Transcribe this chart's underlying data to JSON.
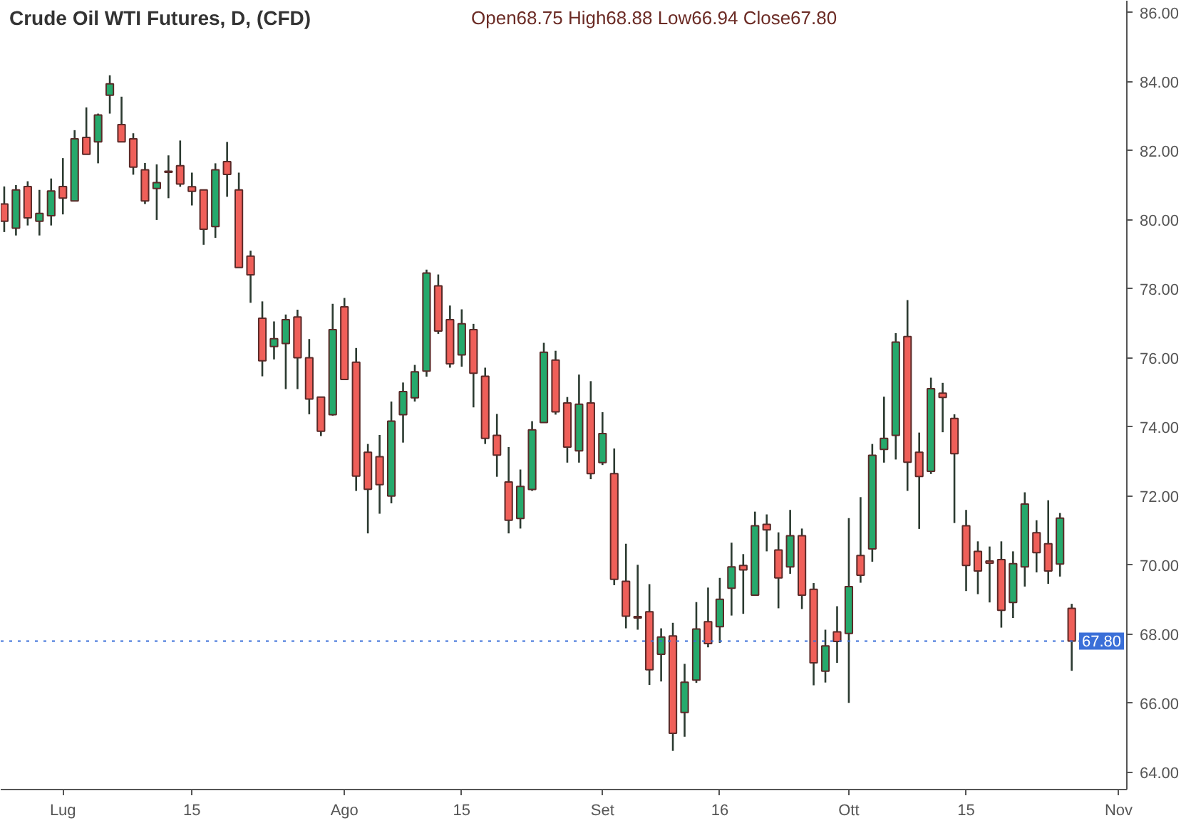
{
  "chart_data": {
    "type": "candlestick",
    "title": "Crude Oil WTI Futures, D, (CFD)",
    "subtitle": "Open68.75  High68.88  Low66.94  Close67.80",
    "categories": [
      null,
      null,
      null,
      null,
      null,
      "Lug",
      null,
      null,
      null,
      null,
      null,
      null,
      null,
      null,
      null,
      null,
      "15",
      null,
      null,
      null,
      null,
      null,
      null,
      null,
      null,
      null,
      null,
      null,
      null,
      "Ago",
      null,
      null,
      null,
      null,
      null,
      null,
      null,
      null,
      null,
      "15",
      null,
      null,
      null,
      null,
      null,
      null,
      null,
      null,
      null,
      null,
      null,
      "Set",
      null,
      null,
      null,
      null,
      null,
      null,
      null,
      null,
      null,
      "16",
      null,
      null,
      null,
      null,
      null,
      null,
      null,
      null,
      null,
      null,
      "Ott",
      null,
      null,
      null,
      null,
      null,
      null,
      null,
      null,
      null,
      "15",
      null,
      null,
      null,
      null,
      null,
      null,
      null,
      null,
      null,
      null,
      null,
      null,
      "Nov"
    ],
    "ohlc": [
      [
        80.46,
        80.97,
        79.65,
        79.96
      ],
      [
        79.76,
        81.01,
        79.55,
        80.87
      ],
      [
        80.97,
        81.12,
        79.84,
        80.06
      ],
      [
        79.96,
        80.87,
        79.55,
        80.19
      ],
      [
        80.12,
        81.2,
        79.84,
        80.84
      ],
      [
        80.97,
        81.79,
        80.16,
        80.63
      ],
      [
        80.55,
        82.6,
        80.55,
        82.35
      ],
      [
        82.39,
        83.26,
        81.9,
        81.9
      ],
      [
        82.26,
        83.08,
        81.64,
        83.04
      ],
      [
        83.61,
        84.19,
        83.08,
        83.94
      ],
      [
        82.76,
        83.57,
        82.26,
        82.26
      ],
      [
        82.35,
        82.51,
        81.31,
        81.53
      ],
      [
        81.45,
        81.65,
        80.46,
        80.55
      ],
      [
        80.91,
        81.61,
        80.0,
        81.08
      ],
      [
        81.38,
        81.87,
        80.63,
        81.41
      ],
      [
        81.57,
        82.3,
        80.96,
        81.04
      ],
      [
        80.96,
        81.37,
        80.42,
        80.83
      ],
      [
        80.87,
        80.87,
        79.28,
        79.73
      ],
      [
        79.81,
        81.64,
        79.48,
        81.45
      ],
      [
        81.69,
        82.26,
        80.67,
        81.32
      ],
      [
        80.87,
        81.37,
        78.62,
        78.62
      ],
      [
        78.95,
        79.11,
        77.6,
        78.41
      ],
      [
        77.15,
        77.64,
        75.47,
        75.92
      ],
      [
        76.33,
        77.06,
        75.96,
        76.56
      ],
      [
        76.42,
        77.26,
        75.1,
        77.11
      ],
      [
        77.19,
        77.4,
        75.1,
        76.01
      ],
      [
        76.01,
        76.55,
        74.37,
        74.81
      ],
      [
        74.87,
        74.87,
        73.74,
        73.88
      ],
      [
        74.36,
        77.57,
        74.33,
        76.82
      ],
      [
        77.48,
        77.74,
        75.38,
        75.38
      ],
      [
        75.88,
        76.29,
        72.15,
        72.58
      ],
      [
        73.27,
        73.51,
        70.92,
        72.2
      ],
      [
        73.14,
        73.77,
        71.49,
        72.33
      ],
      [
        72.0,
        74.74,
        71.79,
        74.17
      ],
      [
        74.36,
        75.29,
        73.55,
        75.03
      ],
      [
        74.85,
        75.8,
        74.74,
        75.6
      ],
      [
        75.62,
        78.56,
        75.46,
        78.46
      ],
      [
        78.09,
        78.42,
        76.7,
        76.78
      ],
      [
        77.11,
        77.52,
        75.72,
        75.83
      ],
      [
        76.09,
        77.41,
        75.75,
        76.99
      ],
      [
        76.82,
        76.99,
        74.57,
        75.56
      ],
      [
        75.47,
        75.72,
        73.51,
        73.67
      ],
      [
        73.76,
        74.38,
        72.56,
        73.19
      ],
      [
        72.41,
        73.42,
        70.92,
        71.3
      ],
      [
        71.35,
        72.77,
        71.06,
        72.28
      ],
      [
        72.19,
        74.17,
        72.15,
        73.92
      ],
      [
        74.13,
        76.44,
        74.13,
        76.17
      ],
      [
        75.94,
        76.21,
        74.36,
        74.44
      ],
      [
        74.7,
        74.87,
        72.97,
        73.42
      ],
      [
        73.31,
        75.52,
        72.97,
        74.66
      ],
      [
        74.7,
        75.33,
        72.49,
        72.65
      ],
      [
        72.97,
        74.43,
        72.9,
        73.81
      ],
      [
        72.65,
        73.38,
        69.42,
        69.59
      ],
      [
        69.53,
        70.62,
        68.17,
        68.52
      ],
      [
        68.51,
        70.01,
        68.13,
        68.47
      ],
      [
        68.65,
        69.45,
        66.53,
        66.97
      ],
      [
        67.42,
        68.17,
        66.63,
        67.92
      ],
      [
        67.95,
        68.33,
        64.62,
        65.13
      ],
      [
        65.73,
        67.14,
        65.03,
        66.61
      ],
      [
        66.67,
        68.93,
        66.59,
        68.15
      ],
      [
        68.36,
        69.35,
        67.62,
        67.73
      ],
      [
        68.22,
        69.63,
        67.75,
        69.01
      ],
      [
        69.33,
        70.65,
        68.54,
        69.95
      ],
      [
        69.99,
        70.32,
        68.59,
        69.86
      ],
      [
        69.13,
        71.55,
        69.13,
        71.14
      ],
      [
        71.18,
        71.47,
        70.4,
        71.02
      ],
      [
        70.44,
        70.95,
        68.75,
        69.63
      ],
      [
        69.95,
        71.6,
        69.75,
        70.85
      ],
      [
        70.85,
        71.06,
        68.73,
        69.13
      ],
      [
        69.3,
        69.48,
        66.52,
        67.17
      ],
      [
        66.93,
        68.13,
        66.6,
        67.66
      ],
      [
        68.07,
        68.81,
        67.17,
        67.79
      ],
      [
        68.02,
        71.36,
        66.01,
        69.38
      ],
      [
        70.28,
        71.97,
        69.49,
        69.71
      ],
      [
        70.47,
        73.51,
        70.1,
        73.18
      ],
      [
        73.35,
        74.88,
        72.97,
        73.67
      ],
      [
        73.76,
        76.72,
        73.06,
        76.46
      ],
      [
        76.62,
        77.68,
        72.15,
        72.98
      ],
      [
        73.27,
        73.84,
        71.05,
        72.57
      ],
      [
        72.72,
        75.43,
        72.64,
        75.11
      ],
      [
        74.98,
        75.28,
        73.85,
        74.86
      ],
      [
        74.25,
        74.37,
        71.22,
        73.23
      ],
      [
        71.14,
        71.6,
        69.25,
        69.99
      ],
      [
        70.4,
        70.69,
        69.16,
        69.83
      ],
      [
        70.12,
        70.54,
        68.92,
        70.06
      ],
      [
        70.16,
        70.69,
        68.19,
        68.69
      ],
      [
        68.92,
        70.4,
        68.47,
        70.04
      ],
      [
        69.95,
        72.11,
        69.38,
        71.77
      ],
      [
        70.94,
        71.3,
        69.79,
        70.36
      ],
      [
        70.62,
        71.88,
        69.46,
        69.83
      ],
      [
        70.03,
        71.51,
        69.67,
        71.36
      ],
      [
        68.75,
        68.88,
        66.94,
        67.8
      ],
      null,
      null,
      null,
      null
    ],
    "colors": [
      "#ef5f59",
      "#26a96c",
      "#ef5f59",
      "#26a96c",
      "#26a96c",
      "#ef5f59",
      "#26a96c",
      "#ef5f59",
      "#26a96c",
      "#26a96c",
      "#ef5f59",
      "#ef5f59",
      "#ef5f59",
      "#26a96c",
      "#26a96c",
      "#ef5f59",
      "#ef5f59",
      "#ef5f59",
      "#26a96c",
      "#ef5f59",
      "#ef5f59",
      "#ef5f59",
      "#ef5f59",
      "#26a96c",
      "#26a96c",
      "#ef5f59",
      "#ef5f59",
      "#ef5f59",
      "#26a96c",
      "#ef5f59",
      "#ef5f59",
      "#ef5f59",
      "#ef5f59",
      "#26a96c",
      "#26a96c",
      "#26a96c",
      "#26a96c",
      "#ef5f59",
      "#ef5f59",
      "#26a96c",
      "#ef5f59",
      "#ef5f59",
      "#ef5f59",
      "#ef5f59",
      "#26a96c",
      "#26a96c",
      "#26a96c",
      "#ef5f59",
      "#ef5f59",
      "#26a96c",
      "#ef5f59",
      "#26a96c",
      "#ef5f59",
      "#ef5f59",
      "#ef5f59",
      "#ef5f59",
      "#26a96c",
      "#ef5f59",
      "#26a96c",
      "#26a96c",
      "#ef5f59",
      "#26a96c",
      "#26a96c",
      "#ef5f59",
      "#26a96c",
      "#ef5f59",
      "#ef5f59",
      "#26a96c",
      "#ef5f59",
      "#ef5f59",
      "#26a96c",
      "#ef5f59",
      "#26a96c",
      "#ef5f59",
      "#26a96c",
      "#26a96c",
      "#26a96c",
      "#ef5f59",
      "#ef5f59",
      "#26a96c",
      "#ef5f59",
      "#ef5f59",
      "#ef5f59",
      "#ef5f59",
      "#ef5f59",
      "#ef5f59",
      "#26a96c",
      "#26a96c",
      "#ef5f59",
      "#ef5f59",
      "#26a96c",
      "#ef5f59",
      null,
      null,
      null,
      null
    ],
    "ylim": [
      63.5,
      86.35
    ],
    "yticks": [
      {
        "value": 64,
        "label": "64.00"
      },
      {
        "value": 66,
        "label": "66.00"
      },
      {
        "value": 68,
        "label": "68.00"
      },
      {
        "value": 70,
        "label": "70.00"
      },
      {
        "value": 72,
        "label": "72.00"
      },
      {
        "value": 74,
        "label": "74.00"
      },
      {
        "value": 76,
        "label": "76.00"
      },
      {
        "value": 78,
        "label": "78.00"
      },
      {
        "value": 80,
        "label": "80.00"
      },
      {
        "value": 82,
        "label": "82.00"
      },
      {
        "value": 84,
        "label": "84.00"
      },
      {
        "value": 86,
        "label": "86.00"
      }
    ],
    "ref_lines": [
      {
        "axis": "y",
        "value": 67.8,
        "label": "67.80",
        "color": "#3a6fd8",
        "line_style": "dotted"
      }
    ],
    "grid": false
  }
}
